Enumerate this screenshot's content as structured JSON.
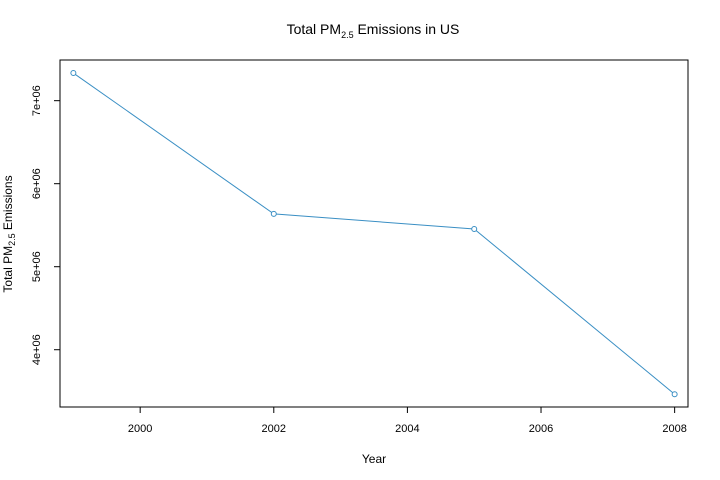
{
  "chart_data": {
    "type": "line",
    "title": {
      "prefix": "Total  PM",
      "subscript": "2.5",
      "suffix": " Emissions in US"
    },
    "xlabel": "Year",
    "ylabel": {
      "prefix": "Total  PM",
      "subscript": "2.5",
      "suffix": " Emissions"
    },
    "x": [
      1999,
      2002,
      2005,
      2008
    ],
    "series": [
      {
        "values": [
          7332967,
          5635780,
          5454703,
          3464206
        ],
        "color": "#3a8fc4"
      }
    ],
    "xticks": [
      {
        "value": 2000,
        "label": "2000"
      },
      {
        "value": 2002,
        "label": "2002"
      },
      {
        "value": 2004,
        "label": "2004"
      },
      {
        "value": 2006,
        "label": "2006"
      },
      {
        "value": 2008,
        "label": "2008"
      }
    ],
    "yticks": [
      {
        "value": 4000000,
        "label": "4e+06"
      },
      {
        "value": 5000000,
        "label": "5e+06"
      },
      {
        "value": 6000000,
        "label": "6e+06"
      },
      {
        "value": 7000000,
        "label": "7e+06"
      }
    ],
    "xlim": [
      1998.8,
      2008.2
    ],
    "ylim": [
      3310000,
      7490000
    ],
    "marker": "open-circle",
    "grid": false,
    "legend": "none"
  }
}
